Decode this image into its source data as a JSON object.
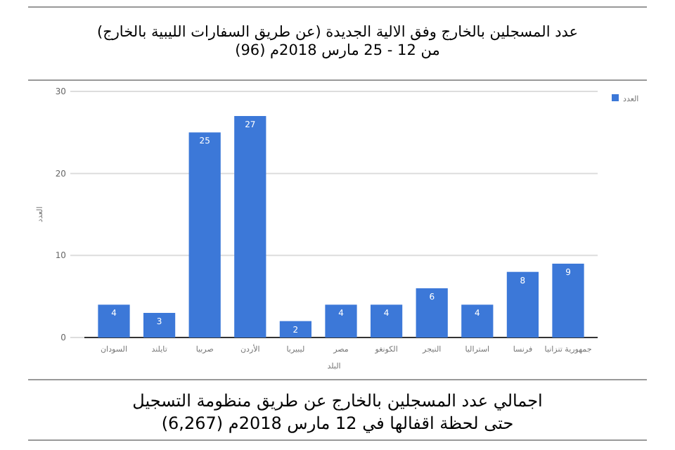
{
  "chart_data": {
    "type": "bar",
    "title": "عدد المسجلين بالخارج وفق الالية الجديدة (عن طريق السفارات الليبية بالخارج)\nمن 12 - 25 مارس 2018م (96)",
    "xlabel": "البلد",
    "ylabel": "العدد",
    "categories": [
      "السودان",
      "تايلند",
      "صربيا",
      "الأردن",
      "ليبيريا",
      "مصر",
      "الكونغو",
      "النيجر",
      "استراليا",
      "فرنسا",
      "جمهورية تنزانيا"
    ],
    "series": [
      {
        "name": "العدد",
        "color": "#3c78d8",
        "values": [
          4,
          3,
          25,
          27,
          2,
          4,
          4,
          6,
          4,
          8,
          9
        ]
      }
    ],
    "ylim": [
      0,
      30
    ],
    "yticks": [
      0,
      10,
      20,
      30
    ],
    "grid": "y",
    "legend": "top right",
    "data_labels": true,
    "annotations": [
      "اجمالي عدد المسجلين بالخارج عن طريق منظومة التسجيل",
      "حتى لحظة اقفالها في 12 مارس 2018م (6,267)"
    ]
  }
}
